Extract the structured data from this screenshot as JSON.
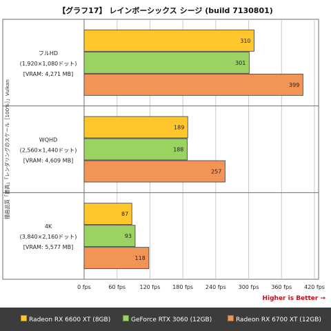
{
  "title": "【グラフ17】 レインボーシックス シージ (build 7130801)",
  "higher_is_better": "Higher is Better →",
  "colors": {
    "rx6600xt": "#ffc72c",
    "rtx3060": "#9bd362",
    "rx6700xt": "#f29456",
    "grid": "#c8c8c8",
    "frame": "#6d6d6d",
    "legend_bg": "#3c3c3c",
    "accent_text": "#c0121b"
  },
  "chart_data": {
    "type": "bar",
    "orientation": "horizontal",
    "title": "【グラフ17】 レインボーシックス シージ (build 7130801)",
    "ylabel": "描画品質「最高」「レンダリングのスケール［100%］」Vulkan",
    "xlabel": "",
    "xlim": [
      0,
      420
    ],
    "xticks": [
      "0 fps",
      "60 fps",
      "120 fps",
      "180 fps",
      "240 fps",
      "300 fps",
      "360 fps",
      "420 fps"
    ],
    "tick_values": [
      0,
      60,
      120,
      180,
      240,
      300,
      360,
      420
    ],
    "grid": true,
    "legend_position": "bottom",
    "categories": [
      {
        "lines": [
          "フルHD",
          "(1,920×1,080ドット)",
          "[VRAM: 4,271 MB]"
        ]
      },
      {
        "lines": [
          "WQHD",
          "(2,560×1,440ドット)",
          "[VRAM: 4,609 MB]"
        ]
      },
      {
        "lines": [
          "4K",
          "(3,840×2,160ドット)",
          "[VRAM: 5,577 MB]"
        ]
      }
    ],
    "series": [
      {
        "name": "Radeon RX 6600 XT (8GB)",
        "color": "#ffc72c",
        "values": [
          310,
          189,
          87
        ]
      },
      {
        "name": "GeForce RTX 3060 (12GB)",
        "color": "#9bd362",
        "values": [
          301,
          188,
          93
        ]
      },
      {
        "name": "Radeon RX 6700 XT (12GB)",
        "color": "#f29456",
        "values": [
          399,
          257,
          118
        ]
      }
    ]
  }
}
